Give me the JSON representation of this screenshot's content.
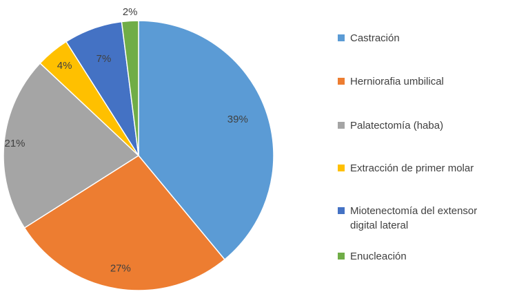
{
  "chart_data": {
    "type": "pie",
    "title": "",
    "categories": [
      "Castración",
      "Herniorafia umbilical",
      "Palatectomía (haba)",
      "Extracción de primer molar",
      "Miotenectomía del extensor digital lateral",
      "Enucleación"
    ],
    "values": [
      39,
      27,
      21,
      4,
      7,
      2
    ],
    "data_labels": [
      "39%",
      "27%",
      "21%",
      "4%",
      "7%",
      "2%"
    ],
    "colors": [
      "#5B9BD5",
      "#ED7D31",
      "#A5A5A5",
      "#FFC000",
      "#4472C4",
      "#70AD47"
    ],
    "legend_position": "right",
    "start_angle": "12 o'clock",
    "direction": "clockwise"
  },
  "legend": {
    "items": [
      {
        "label": "Castración",
        "color": "#5B9BD5"
      },
      {
        "label": "Herniorafia umbilical",
        "color": "#ED7D31"
      },
      {
        "label": "Palatectomía (haba)",
        "color": "#A5A5A5"
      },
      {
        "label": "Extracción de primer molar",
        "color": "#FFC000"
      },
      {
        "label": "Miotenectomía del extensor digital lateral",
        "color": "#4472C4"
      },
      {
        "label": "Enucleación",
        "color": "#70AD47"
      }
    ]
  }
}
